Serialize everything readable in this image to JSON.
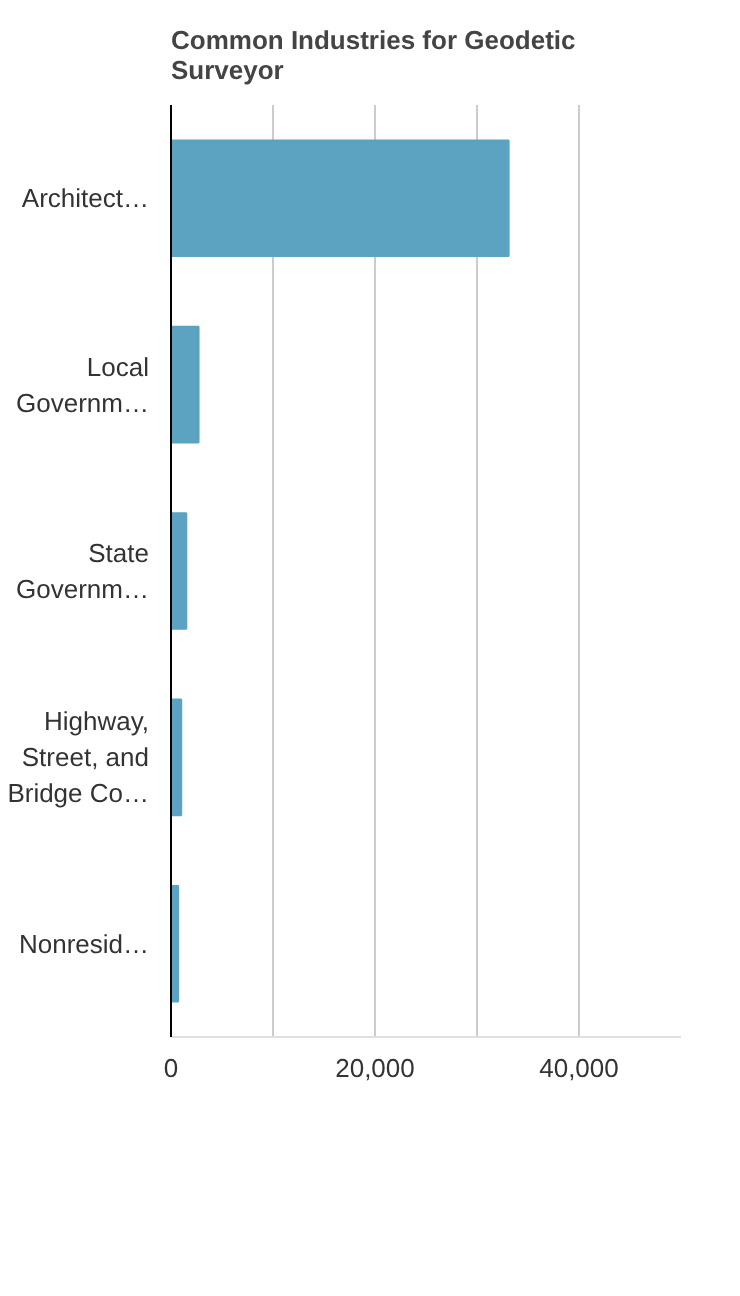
{
  "chart_data": {
    "type": "bar",
    "orientation": "horizontal",
    "title": "Common Industries for Geodetic Surveyor",
    "categories": [
      "Architect…",
      "Local Governm…",
      "State Governm…",
      "Highway, Street, and Bridge Co…",
      "Nonresid…"
    ],
    "values": [
      33100,
      2700,
      1500,
      1000,
      700
    ],
    "color": "#5ba3c0",
    "xlim": [
      0,
      50000
    ],
    "xticks": [
      0,
      {
        "value": 10000,
        "label": null
      },
      {
        "value": 20000,
        "label": "20,000"
      },
      {
        "value": 30000,
        "label": null
      },
      {
        "value": 40000,
        "label": "40,000"
      }
    ],
    "grid": "x"
  }
}
